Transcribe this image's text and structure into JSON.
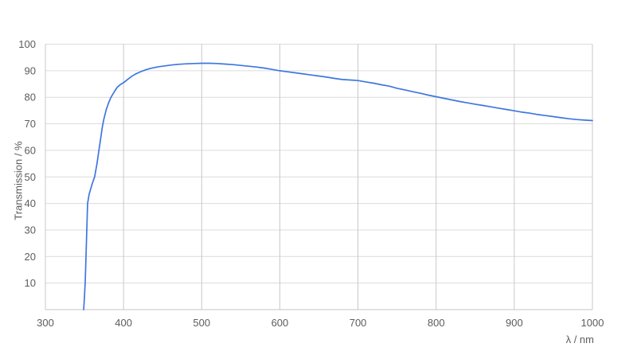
{
  "chart_data": {
    "type": "line",
    "title": "",
    "xlabel": "λ / nm",
    "ylabel": "Transmission / %",
    "xlim": [
      300,
      1000
    ],
    "ylim": [
      0,
      100
    ],
    "x_ticks": [
      300,
      400,
      500,
      600,
      700,
      800,
      900,
      1000
    ],
    "y_ticks": [
      10,
      20,
      30,
      40,
      50,
      60,
      70,
      80,
      90,
      100
    ],
    "grid": true,
    "legend": false,
    "colors": {
      "line": "#3e76e0",
      "grid_vertical": "#c8c8c8",
      "grid_horizontal": "#dcdcdc",
      "axis_line": "#c6c6c6",
      "tick_text": "#5b5c5e"
    },
    "series": [
      {
        "points": [
          [
            349,
            0
          ],
          [
            350,
            5
          ],
          [
            351,
            11
          ],
          [
            352,
            20
          ],
          [
            353,
            30
          ],
          [
            354,
            40
          ],
          [
            356,
            43.5
          ],
          [
            358,
            45.5
          ],
          [
            360,
            47.5
          ],
          [
            363,
            50
          ],
          [
            366,
            55
          ],
          [
            369,
            61
          ],
          [
            371,
            65
          ],
          [
            373,
            69
          ],
          [
            375,
            72
          ],
          [
            378,
            75.5
          ],
          [
            381,
            78
          ],
          [
            384,
            80
          ],
          [
            388,
            82
          ],
          [
            392,
            83.8
          ],
          [
            396,
            84.8
          ],
          [
            400,
            85.5
          ],
          [
            405,
            86.7
          ],
          [
            410,
            87.8
          ],
          [
            415,
            88.7
          ],
          [
            420,
            89.4
          ],
          [
            425,
            90.0
          ],
          [
            430,
            90.5
          ],
          [
            435,
            90.9
          ],
          [
            440,
            91.2
          ],
          [
            445,
            91.5
          ],
          [
            450,
            91.7
          ],
          [
            460,
            92.1
          ],
          [
            470,
            92.4
          ],
          [
            480,
            92.6
          ],
          [
            490,
            92.7
          ],
          [
            500,
            92.8
          ],
          [
            510,
            92.8
          ],
          [
            520,
            92.7
          ],
          [
            530,
            92.5
          ],
          [
            540,
            92.3
          ],
          [
            550,
            92.0
          ],
          [
            560,
            91.7
          ],
          [
            570,
            91.4
          ],
          [
            580,
            91.0
          ],
          [
            590,
            90.5
          ],
          [
            600,
            90.0
          ],
          [
            610,
            89.6
          ],
          [
            620,
            89.2
          ],
          [
            630,
            88.8
          ],
          [
            640,
            88.4
          ],
          [
            650,
            88.0
          ],
          [
            660,
            87.6
          ],
          [
            670,
            87.1
          ],
          [
            680,
            86.7
          ],
          [
            690,
            86.5
          ],
          [
            700,
            86.3
          ],
          [
            710,
            85.8
          ],
          [
            720,
            85.3
          ],
          [
            730,
            84.7
          ],
          [
            740,
            84.2
          ],
          [
            750,
            83.4
          ],
          [
            760,
            82.8
          ],
          [
            770,
            82.1
          ],
          [
            780,
            81.5
          ],
          [
            790,
            80.8
          ],
          [
            800,
            80.2
          ],
          [
            810,
            79.6
          ],
          [
            820,
            79.0
          ],
          [
            830,
            78.4
          ],
          [
            840,
            77.9
          ],
          [
            850,
            77.4
          ],
          [
            860,
            76.9
          ],
          [
            870,
            76.4
          ],
          [
            880,
            75.9
          ],
          [
            890,
            75.4
          ],
          [
            900,
            74.9
          ],
          [
            910,
            74.4
          ],
          [
            920,
            74.0
          ],
          [
            930,
            73.5
          ],
          [
            940,
            73.1
          ],
          [
            950,
            72.7
          ],
          [
            960,
            72.3
          ],
          [
            970,
            71.9
          ],
          [
            980,
            71.6
          ],
          [
            990,
            71.4
          ],
          [
            1000,
            71.2
          ]
        ]
      }
    ]
  }
}
